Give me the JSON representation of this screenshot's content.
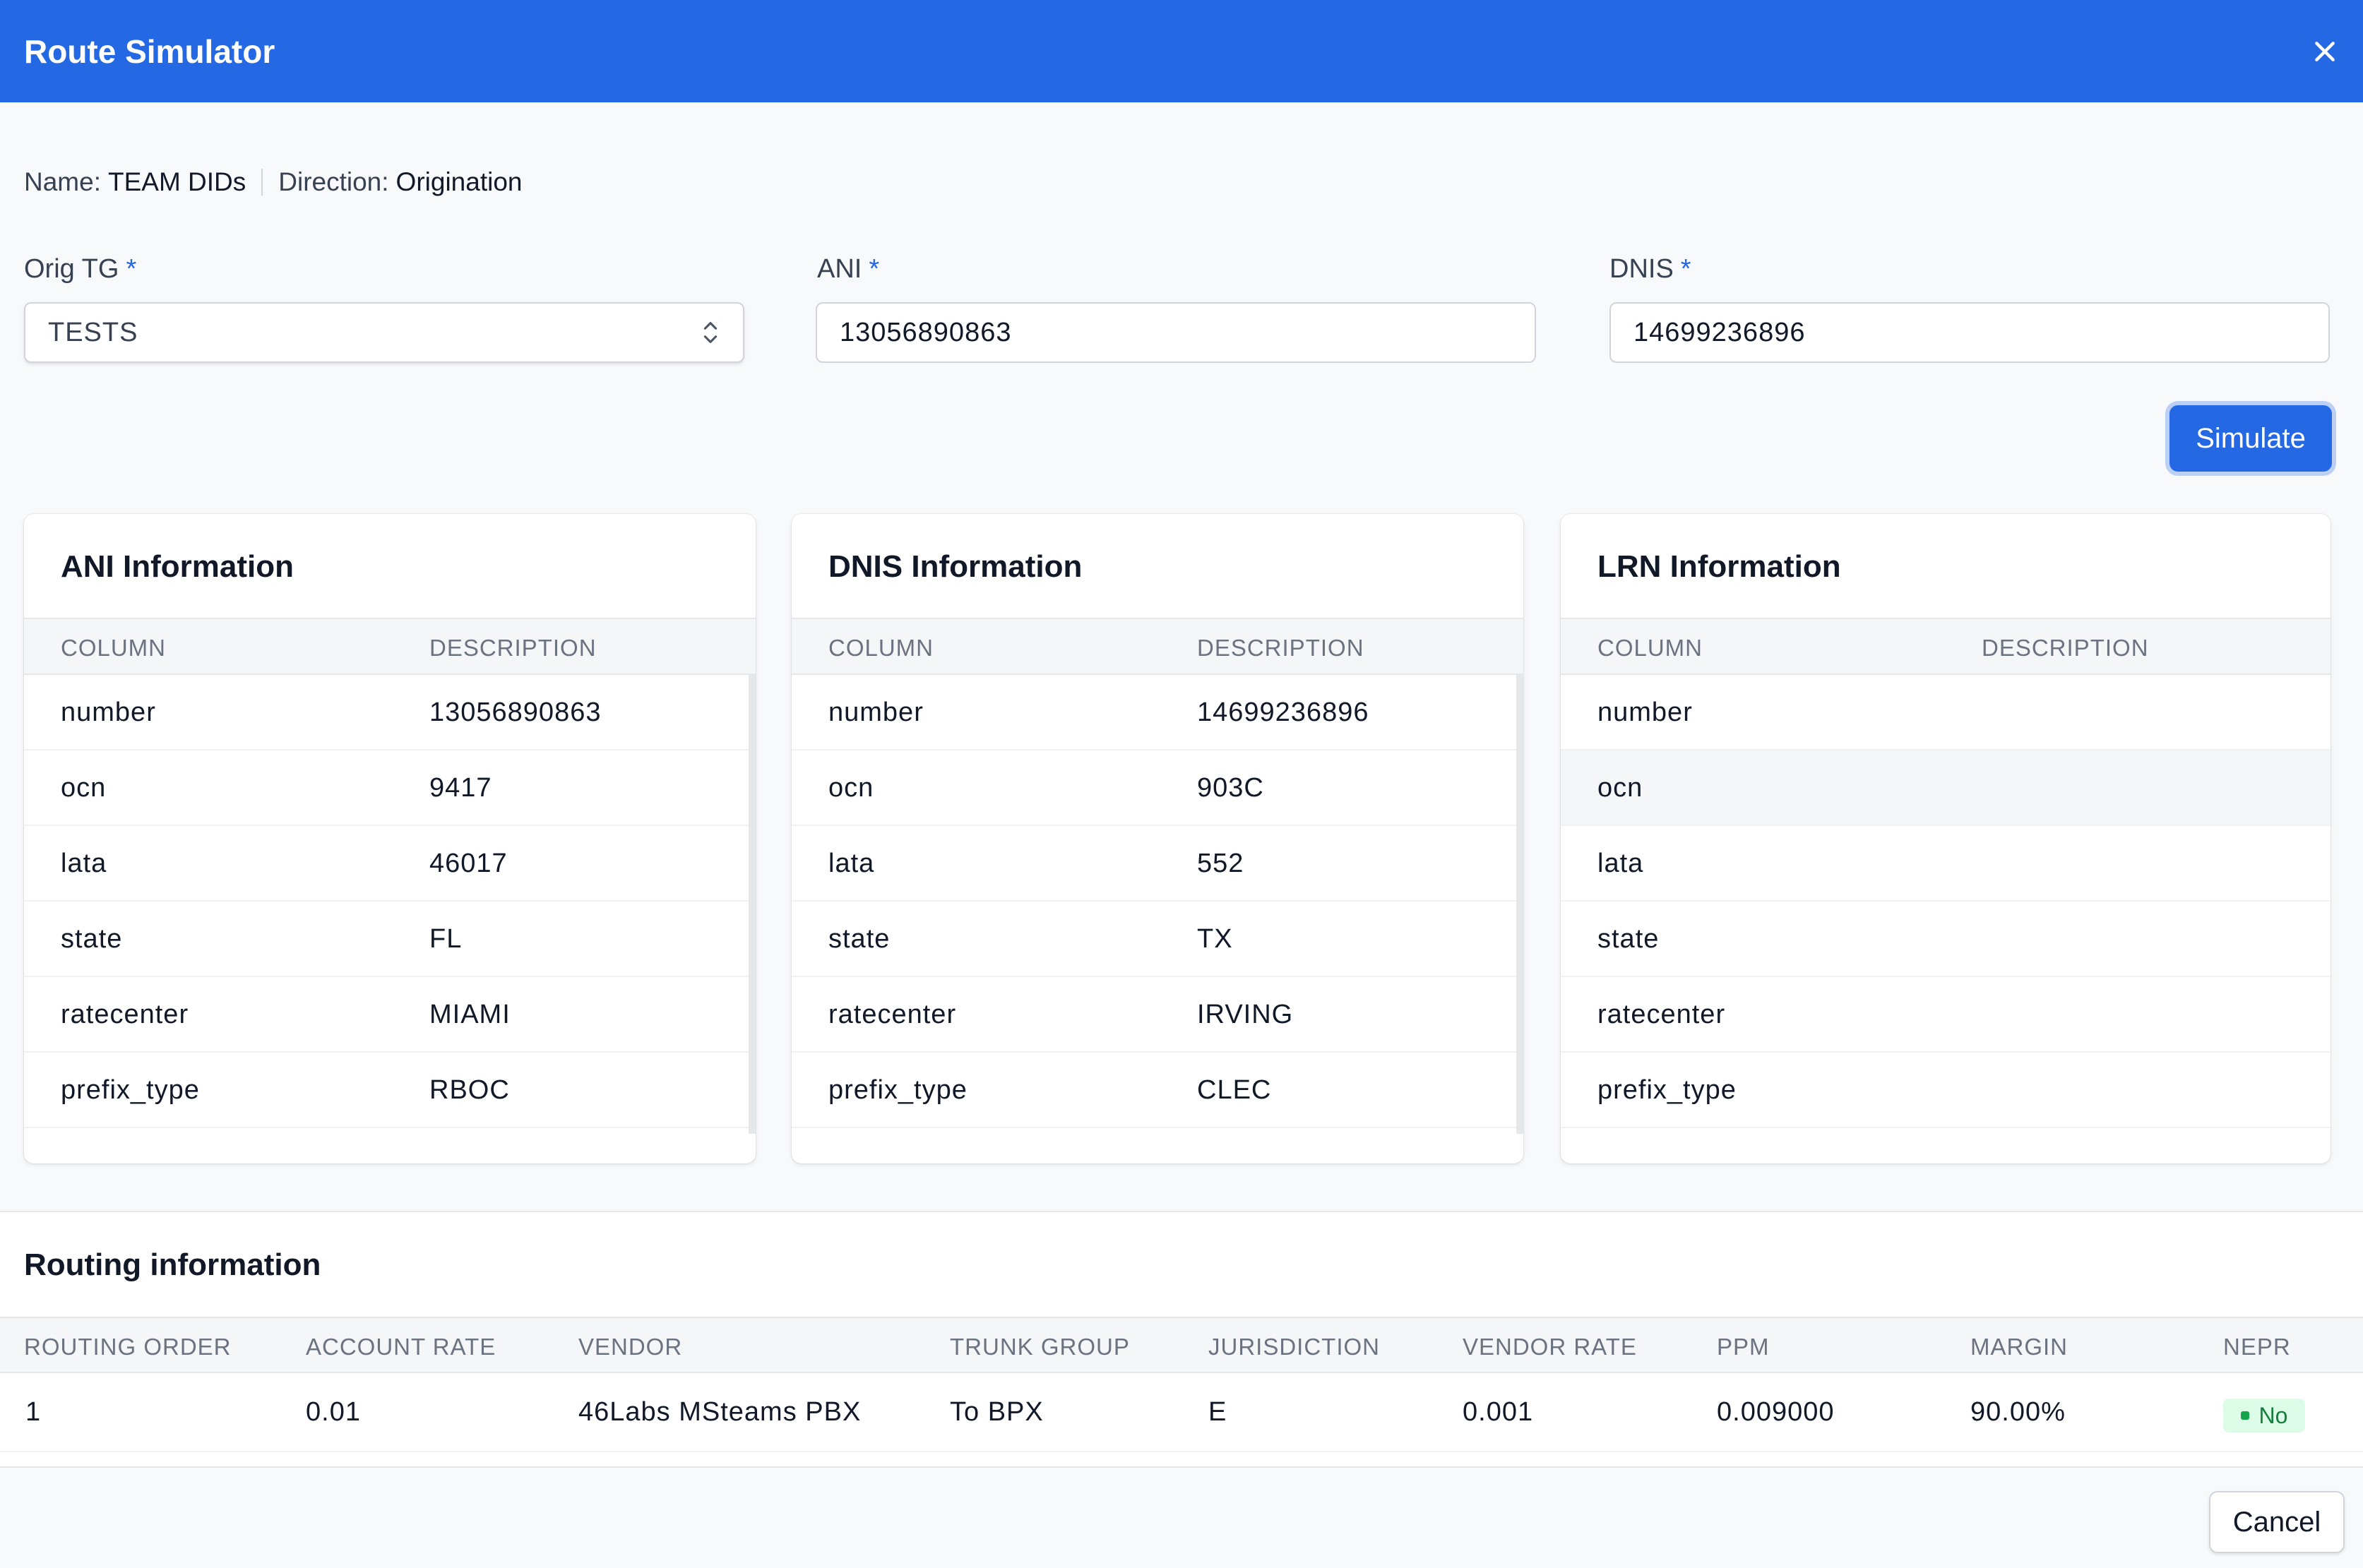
{
  "header": {
    "title": "Route Simulator",
    "close_icon": "close-icon"
  },
  "meta": {
    "name_label": "Name:",
    "name_value": "TEAM DIDs",
    "direction_label": "Direction:",
    "direction_value": "Origination"
  },
  "form": {
    "orig_tg": {
      "label": "Orig TG",
      "required": "*",
      "value": "TESTS"
    },
    "ani": {
      "label": "ANI",
      "required": "*",
      "value": "13056890863"
    },
    "dnis": {
      "label": "DNIS",
      "required": "*",
      "value": "14699236896"
    },
    "simulate_label": "Simulate"
  },
  "cards": [
    {
      "title": "ANI Information",
      "col_header": "COLUMN",
      "desc_header": "DESCRIPTION",
      "rows": [
        {
          "column": "number",
          "description": "13056890863"
        },
        {
          "column": "ocn",
          "description": "9417"
        },
        {
          "column": "lata",
          "description": "46017"
        },
        {
          "column": "state",
          "description": "FL"
        },
        {
          "column": "ratecenter",
          "description": "MIAMI"
        },
        {
          "column": "prefix_type",
          "description": "RBOC"
        }
      ]
    },
    {
      "title": "DNIS Information",
      "col_header": "COLUMN",
      "desc_header": "DESCRIPTION",
      "rows": [
        {
          "column": "number",
          "description": "14699236896"
        },
        {
          "column": "ocn",
          "description": "903C"
        },
        {
          "column": "lata",
          "description": "552"
        },
        {
          "column": "state",
          "description": "TX"
        },
        {
          "column": "ratecenter",
          "description": "IRVING"
        },
        {
          "column": "prefix_type",
          "description": "CLEC"
        }
      ]
    },
    {
      "title": "LRN Information",
      "col_header": "COLUMN",
      "desc_header": "DESCRIPTION",
      "rows": [
        {
          "column": "number",
          "description": ""
        },
        {
          "column": "ocn",
          "description": ""
        },
        {
          "column": "lata",
          "description": ""
        },
        {
          "column": "state",
          "description": ""
        },
        {
          "column": "ratecenter",
          "description": ""
        },
        {
          "column": "prefix_type",
          "description": ""
        }
      ]
    }
  ],
  "routing": {
    "title": "Routing information",
    "headers": [
      "ROUTING ORDER",
      "ACCOUNT RATE",
      "VENDOR",
      "TRUNK GROUP",
      "JURISDICTION",
      "VENDOR RATE",
      "PPM",
      "MARGIN",
      "NEPR"
    ],
    "rows": [
      {
        "routing_order": "1",
        "account_rate": "0.01",
        "vendor": "46Labs MSteams PBX",
        "trunk_group": "To BPX",
        "jurisdiction": "E",
        "vendor_rate": "0.001",
        "ppm": "0.009000",
        "margin": "90.00%",
        "nepr": "No"
      }
    ],
    "badge_color": "#16a34a"
  },
  "footer": {
    "cancel_label": "Cancel"
  },
  "colors": {
    "accent": "#2468e4",
    "badge_bg": "#dcfce7",
    "badge_text": "#15803d"
  }
}
